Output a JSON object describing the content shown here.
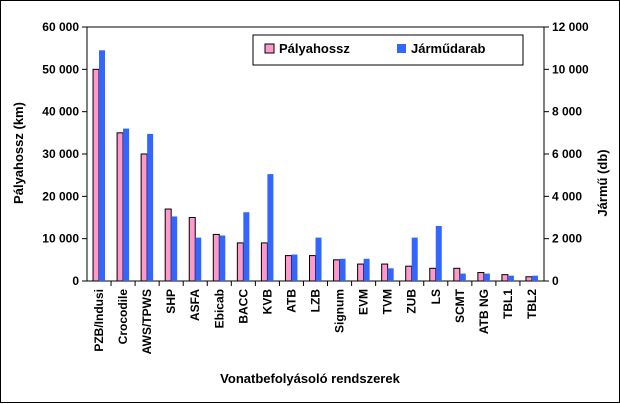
{
  "chart_data": {
    "type": "bar",
    "title": "",
    "xlabel": "Vonatbefolyásoló rendszerek",
    "ylabel": "Pályahossz (km)",
    "y2label": "Jármű (db)",
    "ylim": [
      0,
      60000
    ],
    "y2lim": [
      0,
      12000
    ],
    "yticks": [
      "0",
      "10 000",
      "20 000",
      "30 000",
      "40 000",
      "50 000",
      "60 000"
    ],
    "y2ticks": [
      "0",
      "2 000",
      "4 000",
      "6 000",
      "8 000",
      "10 000",
      "12 000"
    ],
    "categories": [
      "PZB/Indusi",
      "Crocodile",
      "AWS/TPWS",
      "SHP",
      "ASFA",
      "Ebicab",
      "BACC",
      "KVB",
      "ATB",
      "LZB",
      "Signum",
      "EVM",
      "TVM",
      "ZUB",
      "LS",
      "SCMT",
      "ATB NG",
      "TBL1",
      "TBL2"
    ],
    "series": [
      {
        "name": "Pályahossz",
        "axis": "left",
        "color": "#ff99cc",
        "values": [
          50000,
          35000,
          30000,
          17000,
          15000,
          11000,
          9000,
          9000,
          6000,
          6000,
          5000,
          4000,
          4000,
          3500,
          3000,
          3000,
          2000,
          1500,
          1000
        ]
      },
      {
        "name": "Járműdarab",
        "axis": "right",
        "color": "#3366ff",
        "values": [
          10900,
          7200,
          6950,
          3050,
          2050,
          2150,
          3250,
          5050,
          1250,
          2050,
          1050,
          1050,
          600,
          2050,
          2600,
          350,
          350,
          250,
          250
        ]
      }
    ],
    "legend_position": "top-right",
    "grid": false
  }
}
